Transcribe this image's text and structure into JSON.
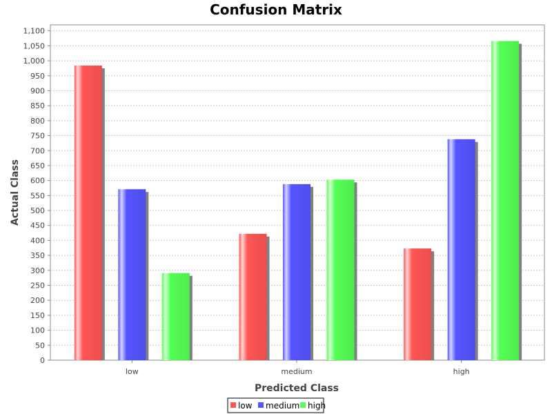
{
  "chart_data": {
    "type": "bar",
    "title": "Confusion Matrix",
    "xlabel": "Predicted Class",
    "ylabel": "Actual Class",
    "categories": [
      "low",
      "medium",
      "high"
    ],
    "series": [
      {
        "name": "low",
        "values": [
          984,
          422,
          373
        ],
        "color": "#ff5555"
      },
      {
        "name": "medium",
        "values": [
          571,
          588,
          738
        ],
        "color": "#5555ff"
      },
      {
        "name": "high",
        "values": [
          291,
          603,
          1066
        ],
        "color": "#55ff55"
      }
    ],
    "ylim": [
      0,
      1120
    ],
    "yticks": [
      0,
      50,
      100,
      150,
      200,
      250,
      300,
      350,
      400,
      450,
      500,
      550,
      600,
      650,
      700,
      750,
      800,
      850,
      900,
      950,
      1000,
      1050,
      1100
    ],
    "ytick_labels": [
      "0",
      "50",
      "100",
      "150",
      "200",
      "250",
      "300",
      "350",
      "400",
      "450",
      "500",
      "550",
      "600",
      "650",
      "700",
      "750",
      "800",
      "850",
      "900",
      "950",
      "1,000",
      "1,050",
      "1,100"
    ],
    "grid": true,
    "legend_position": "bottom-center"
  }
}
